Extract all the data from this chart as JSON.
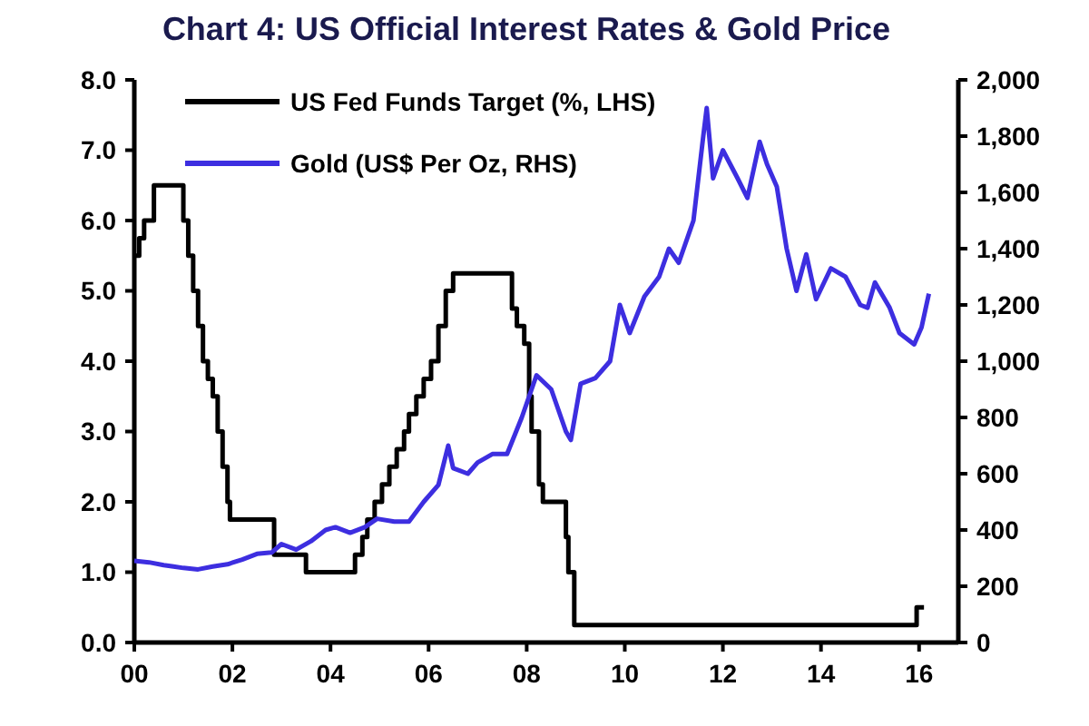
{
  "chart_data": {
    "type": "line",
    "title": "Chart 4: US Official Interest Rates & Gold Price",
    "xlim": [
      2000,
      2016.8
    ],
    "xticks": [
      {
        "value": 2000,
        "label": "00"
      },
      {
        "value": 2002,
        "label": "02"
      },
      {
        "value": 2004,
        "label": "04"
      },
      {
        "value": 2006,
        "label": "06"
      },
      {
        "value": 2008,
        "label": "08"
      },
      {
        "value": 2010,
        "label": "10"
      },
      {
        "value": 2012,
        "label": "12"
      },
      {
        "value": 2014,
        "label": "14"
      },
      {
        "value": 2016,
        "label": "16"
      }
    ],
    "ylim": [
      0,
      8
    ],
    "yticks": [
      {
        "value": 0,
        "label": "0.0"
      },
      {
        "value": 1,
        "label": "1.0"
      },
      {
        "value": 2,
        "label": "2.0"
      },
      {
        "value": 3,
        "label": "3.0"
      },
      {
        "value": 4,
        "label": "4.0"
      },
      {
        "value": 5,
        "label": "5.0"
      },
      {
        "value": 6,
        "label": "6.0"
      },
      {
        "value": 7,
        "label": "7.0"
      },
      {
        "value": 8,
        "label": "8.0"
      }
    ],
    "y2lim": [
      0,
      2000
    ],
    "y2ticks": [
      0,
      {
        "value": 200,
        "label": "200"
      },
      {
        "value": 400,
        "label": "400"
      },
      {
        "value": 600,
        "label": "600"
      },
      {
        "value": 800,
        "label": "800"
      },
      {
        "value": 1000,
        "label": "1,000"
      },
      {
        "value": 1200,
        "label": "1,200"
      },
      {
        "value": 1400,
        "label": "1,400"
      },
      {
        "value": 1600,
        "label": "1,600"
      },
      {
        "value": 1800,
        "label": "1,800"
      },
      {
        "value": 2000,
        "label": "2,000"
      }
    ],
    "legend": "top left",
    "grid": false,
    "marker": "none",
    "line_style": "solid",
    "series": [
      {
        "name": "US Fed Funds Target (%, LHS)",
        "type": "step",
        "color": "#000000",
        "x": [
          2000,
          2000.1,
          2000.2,
          2000.4,
          2001,
          2001.1,
          2001.2,
          2001.3,
          2001.4,
          2001.5,
          2001.6,
          2001.7,
          2001.8,
          2001.9,
          2001.95,
          2002.85,
          2003.5,
          2004.5,
          2004.65,
          2004.75,
          2004.9,
          2005.05,
          2005.2,
          2005.35,
          2005.5,
          2005.6,
          2005.75,
          2005.9,
          2006.05,
          2006.2,
          2006.35,
          2006.5,
          2007.7,
          2007.8,
          2007.95,
          2008.05,
          2008.1,
          2008.25,
          2008.33,
          2008.8,
          2008.85,
          2008.97,
          2015.95,
          2016.1
        ],
        "values": [
          5.5,
          5.75,
          6,
          6.5,
          6,
          5.5,
          5,
          4.5,
          4,
          3.75,
          3.5,
          3,
          2.5,
          2,
          1.75,
          1.25,
          1,
          1.25,
          1.5,
          1.75,
          2,
          2.25,
          2.5,
          2.75,
          3,
          3.25,
          3.5,
          3.75,
          4,
          4.5,
          5,
          5.25,
          4.75,
          4.5,
          4.25,
          3.5,
          3,
          2.25,
          2,
          1.5,
          1,
          0.25,
          0.5,
          0.5
        ]
      },
      {
        "name": "Gold (US$ Per Oz, RHS)",
        "axis": "y2",
        "color": "#3d2ee0",
        "x": [
          2000,
          2000.3,
          2000.6,
          2000.8,
          2001,
          2001.3,
          2001.6,
          2001.9,
          2002.2,
          2002.5,
          2002.8,
          2003,
          2003.3,
          2003.6,
          2003.9,
          2004.1,
          2004.4,
          2004.7,
          2004.95,
          2005.3,
          2005.6,
          2005.9,
          2006.2,
          2006.4,
          2006.5,
          2006.8,
          2007,
          2007.3,
          2007.6,
          2007.9,
          2008.2,
          2008.5,
          2008.8,
          2008.9,
          2009.1,
          2009.4,
          2009.7,
          2009.9,
          2010.1,
          2010.4,
          2010.7,
          2010.9,
          2011.1,
          2011.4,
          2011.6,
          2011.67,
          2011.8,
          2012,
          2012.3,
          2012.5,
          2012.75,
          2012.9,
          2013.1,
          2013.3,
          2013.5,
          2013.7,
          2013.9,
          2014.2,
          2014.5,
          2014.8,
          2014.95,
          2015.1,
          2015.4,
          2015.6,
          2015.9,
          2016.05,
          2016.2
        ],
        "values": [
          290,
          285,
          275,
          270,
          265,
          260,
          270,
          278,
          295,
          315,
          320,
          350,
          330,
          360,
          400,
          410,
          390,
          410,
          440,
          430,
          430,
          500,
          560,
          700,
          620,
          600,
          640,
          670,
          670,
          800,
          950,
          900,
          750,
          720,
          920,
          940,
          1000,
          1200,
          1100,
          1230,
          1300,
          1400,
          1350,
          1500,
          1800,
          1900,
          1650,
          1750,
          1650,
          1580,
          1780,
          1700,
          1620,
          1400,
          1250,
          1380,
          1220,
          1330,
          1300,
          1200,
          1190,
          1280,
          1190,
          1100,
          1060,
          1120,
          1240
        ]
      }
    ]
  }
}
